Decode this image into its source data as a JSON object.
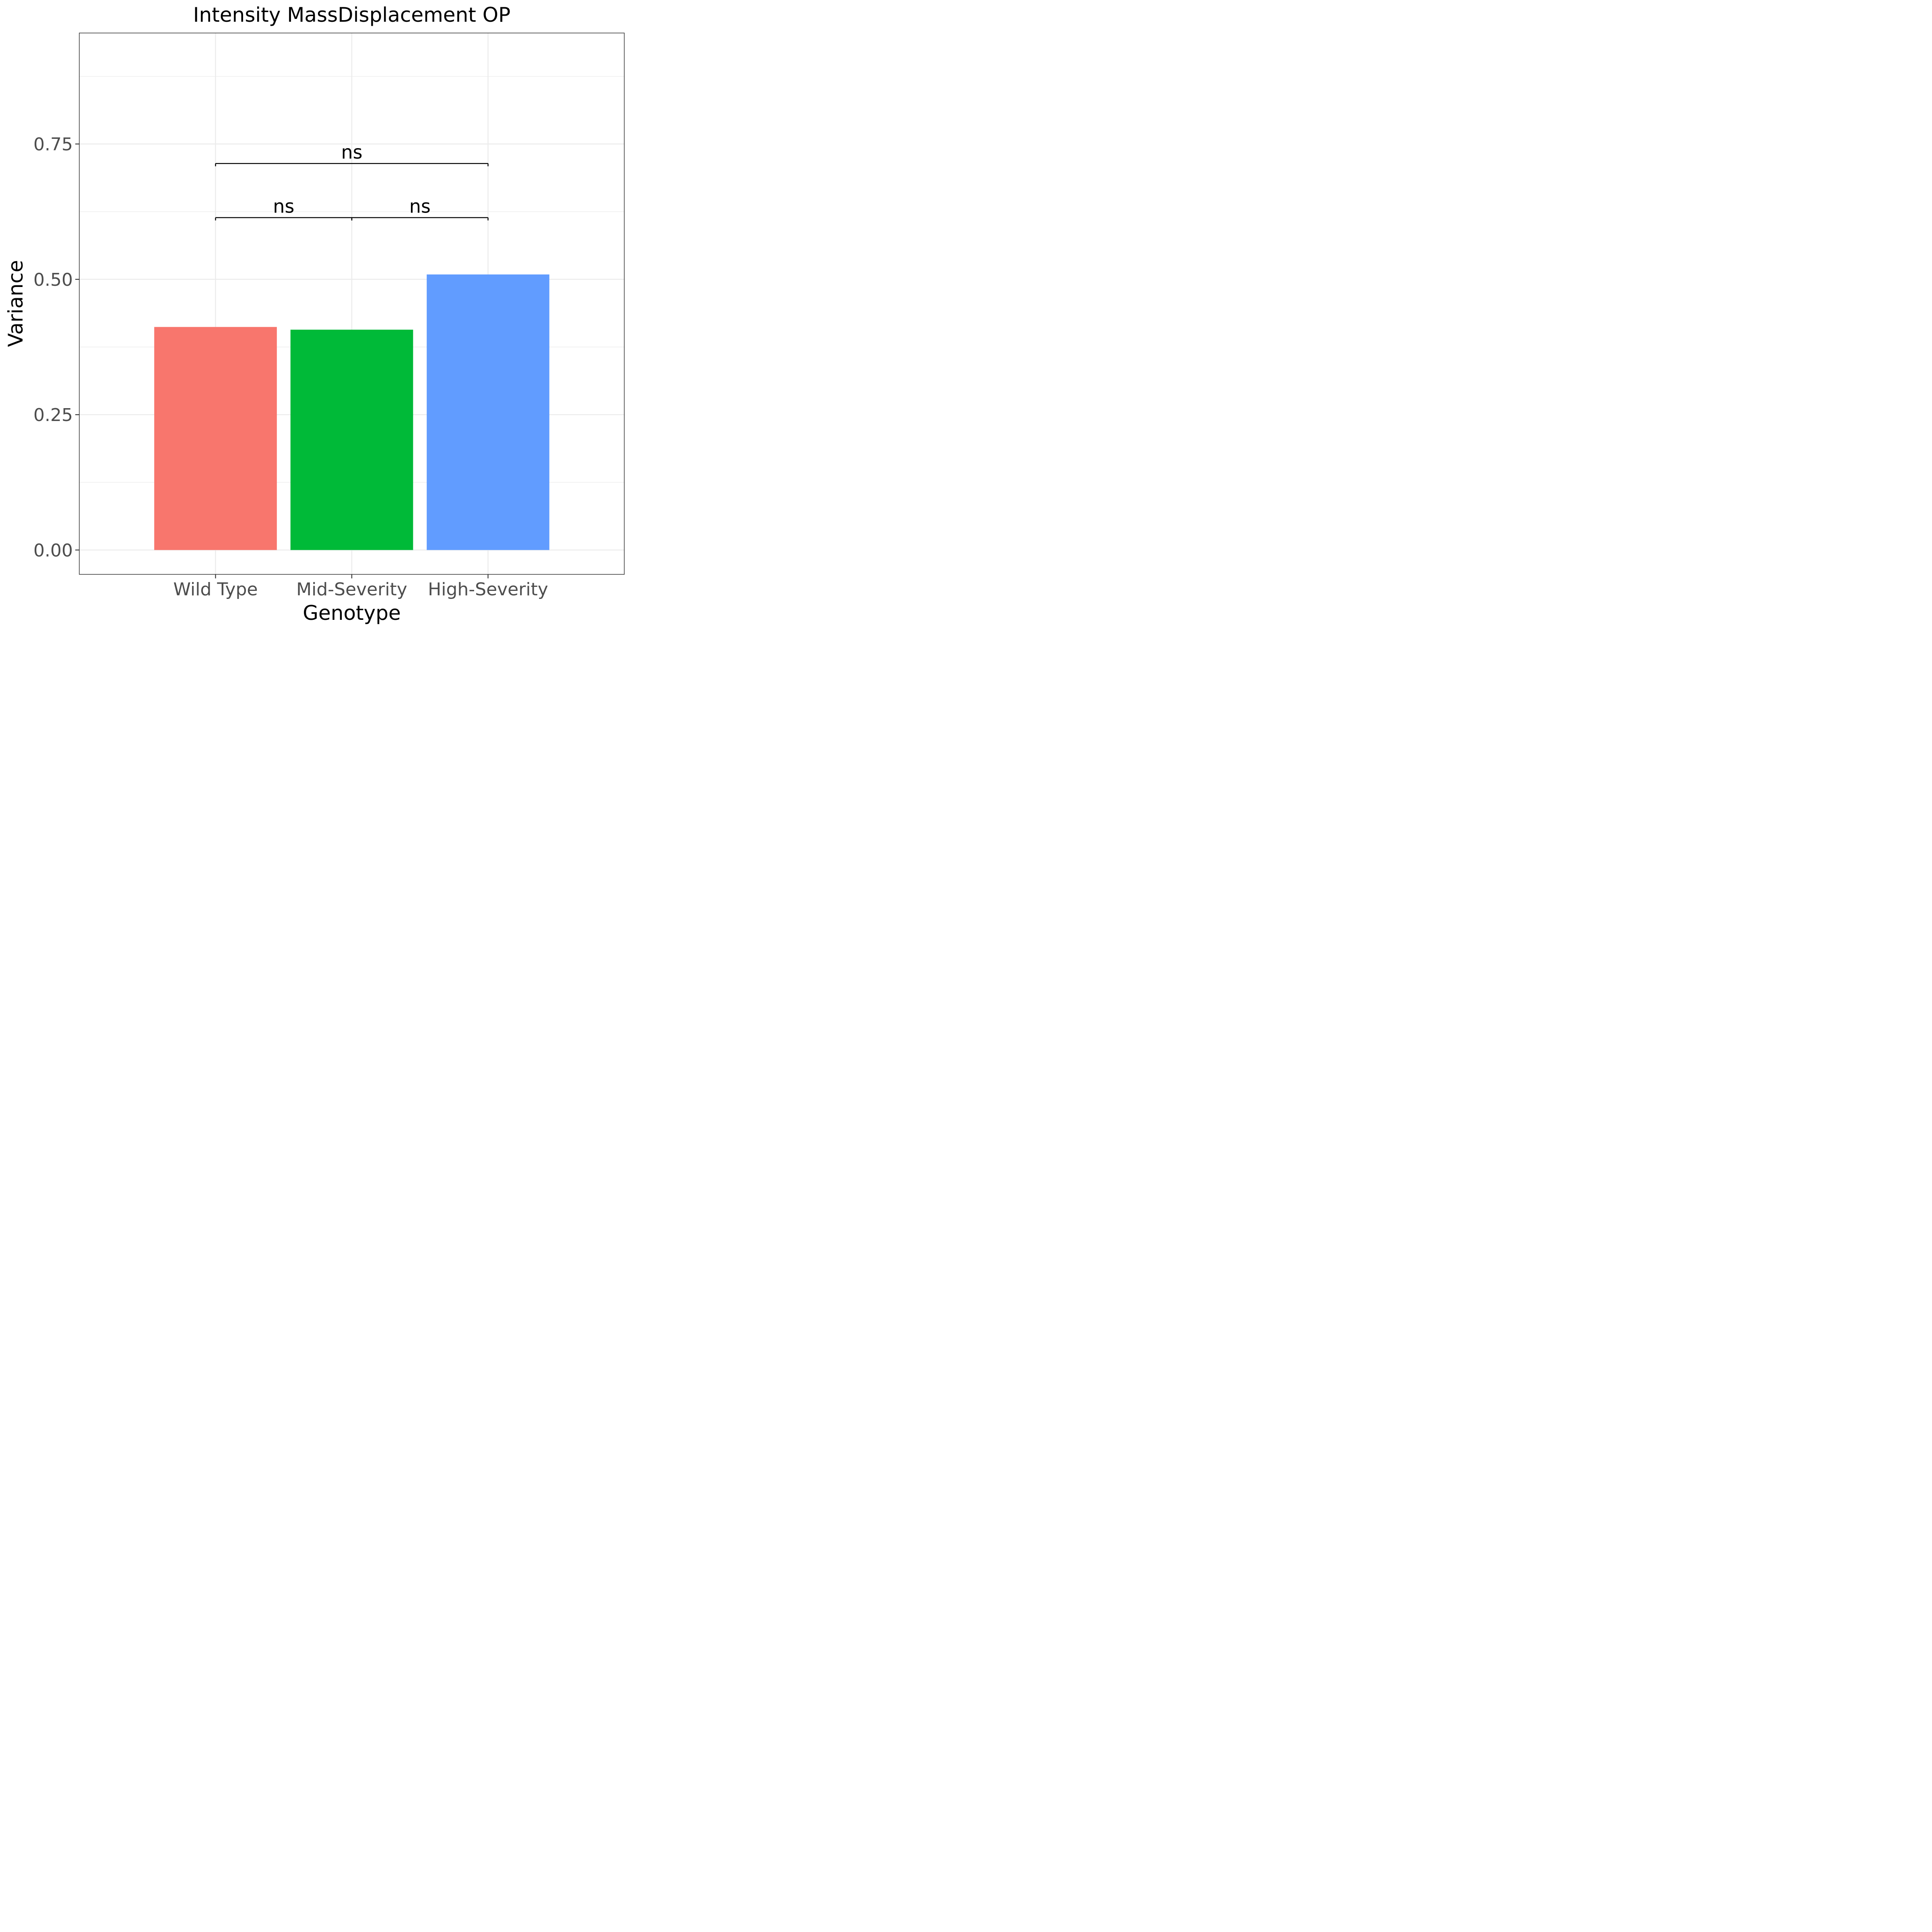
{
  "chart_data": {
    "type": "bar",
    "title": "Intensity MassDisplacement OP",
    "xlabel": "Genotype",
    "ylabel": "Variance",
    "categories": [
      "Wild Type",
      "Mid-Severity",
      "High-Severity"
    ],
    "values": [
      0.412,
      0.407,
      0.509
    ],
    "colors": [
      "#F8766D",
      "#00BA38",
      "#619CFF"
    ],
    "ylim": [
      -0.045,
      0.955
    ],
    "yticks": [
      0,
      0.25,
      0.5,
      0.75
    ],
    "ytick_labels": [
      "0.00",
      "0.25",
      "0.50",
      "0.75"
    ],
    "grid": true,
    "comparisons": [
      {
        "from": 0,
        "to": 1,
        "y": 0.614,
        "label": "ns"
      },
      {
        "from": 1,
        "to": 2,
        "y": 0.614,
        "label": "ns"
      },
      {
        "from": 0,
        "to": 2,
        "y": 0.714,
        "label": "ns"
      }
    ]
  }
}
